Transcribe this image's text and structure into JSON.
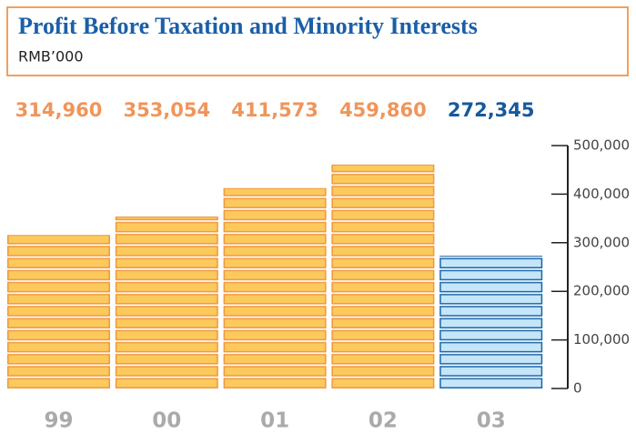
{
  "chart_data": {
    "type": "bar",
    "title": "Profit Before Taxation and Minority Interests",
    "subtitle": "RMB’000",
    "categories": [
      "99",
      "00",
      "01",
      "02",
      "03"
    ],
    "values": [
      314960,
      353054,
      411573,
      459860,
      272345
    ],
    "value_labels": [
      "314,960",
      "353,054",
      "411,573",
      "459,860",
      "272,345"
    ],
    "colors": [
      "#fcc95c",
      "#fcc95c",
      "#fcc95c",
      "#fcc95c",
      "#c4e6f8"
    ],
    "stroke_colors": [
      "#f0983f",
      "#f0983f",
      "#f0983f",
      "#f0983f",
      "#1b65a8"
    ],
    "value_label_colors": [
      "#f0955a",
      "#f0955a",
      "#f0955a",
      "#f0955a",
      "#17599c"
    ],
    "ylim": [
      0,
      500000
    ],
    "yticks": [
      0,
      {
        "value": 100000,
        "label": "100,000"
      },
      {
        "value": 200000,
        "label": "200,000"
      },
      {
        "value": 300000,
        "label": "300,000"
      },
      {
        "value": 400000,
        "label": "400,000"
      },
      {
        "value": 500000,
        "label": "500,000"
      }
    ]
  }
}
